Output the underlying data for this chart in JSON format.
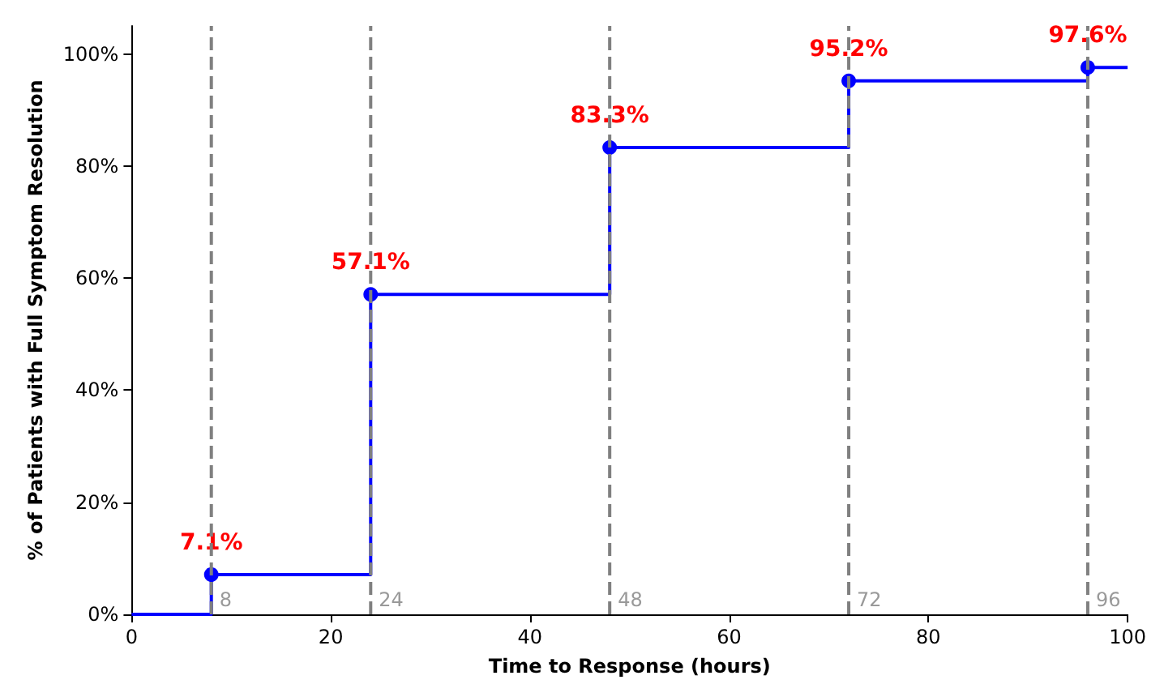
{
  "chart_data": {
    "type": "step",
    "xlabel": "Time to Response (hours)",
    "ylabel": "% of Patients with Full Symptom Resolution",
    "x": [
      0,
      8,
      24,
      48,
      72,
      96,
      100
    ],
    "series": [
      {
        "color": "#0000ff",
        "values": [
          0,
          7.1,
          57.1,
          83.3,
          95.2,
          97.6,
          97.6
        ],
        "value_labels": [
          null,
          "7.1%",
          "57.1%",
          "83.3%",
          "95.2%",
          "97.6%",
          null
        ]
      }
    ],
    "xlim": [
      0,
      100
    ],
    "xticks": [
      0,
      20,
      40,
      60,
      80,
      100
    ],
    "ylim": [
      0,
      105
    ],
    "yticks": [
      {
        "value": 0,
        "label": "0%"
      },
      {
        "value": 20,
        "label": "20%"
      },
      {
        "value": 40,
        "label": "40%"
      },
      {
        "value": 60,
        "label": "60%"
      },
      {
        "value": 80,
        "label": "80%"
      },
      {
        "value": 100,
        "label": "100%"
      }
    ],
    "ref_lines": [
      {
        "axis": "x",
        "value": 8,
        "label": "8",
        "color": "#808080",
        "line_style": "dashed"
      },
      {
        "axis": "x",
        "value": 24,
        "label": "24",
        "color": "#808080",
        "line_style": "dashed"
      },
      {
        "axis": "x",
        "value": 48,
        "label": "48",
        "color": "#808080",
        "line_style": "dashed"
      },
      {
        "axis": "x",
        "value": 72,
        "label": "72",
        "color": "#808080",
        "line_style": "dashed"
      },
      {
        "axis": "x",
        "value": 96,
        "label": "96",
        "color": "#808080",
        "line_style": "dashed"
      }
    ],
    "marker": "circle",
    "grid": false
  }
}
